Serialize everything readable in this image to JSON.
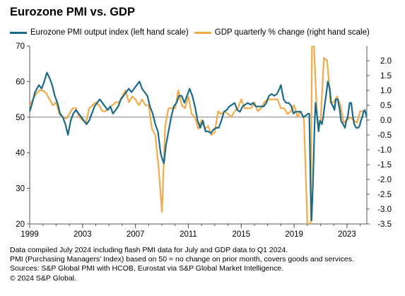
{
  "title": "Eurozone PMI vs. GDP",
  "colors": {
    "pmi": "#1a6b8a",
    "gdp": "#f2ab4c",
    "axis": "#555555",
    "zero": "#808080"
  },
  "chart_data": {
    "type": "line",
    "title": "Eurozone PMI vs. GDP",
    "x_range": [
      1999,
      2024.5
    ],
    "x_ticks": [
      1999,
      2003,
      2007,
      2011,
      2015,
      2019,
      2023
    ],
    "y_left": {
      "range": [
        20,
        70
      ],
      "ticks": [
        20,
        30,
        40,
        50,
        60,
        70
      ]
    },
    "y_right": {
      "range": [
        -3.5,
        2.5
      ],
      "ticks": [
        "-3.5",
        "-3.0",
        "-2.5",
        "-2.0",
        "-1.5",
        "-1.0",
        "-0.5",
        "0.0",
        "0.5",
        "1.0",
        "1.5",
        "2.0"
      ]
    },
    "series": [
      {
        "name": "Eurozone PMI output index (left hand scale)",
        "axis": "left",
        "points": [
          [
            1999.0,
            51.5
          ],
          [
            1999.2,
            54
          ],
          [
            1999.4,
            57
          ],
          [
            1999.7,
            59
          ],
          [
            1999.9,
            58
          ],
          [
            2000.1,
            60
          ],
          [
            2000.3,
            62.5
          ],
          [
            2000.5,
            61
          ],
          [
            2000.7,
            59
          ],
          [
            2000.9,
            56
          ],
          [
            2001.1,
            54
          ],
          [
            2001.3,
            51
          ],
          [
            2001.5,
            50
          ],
          [
            2001.7,
            48
          ],
          [
            2001.9,
            45
          ],
          [
            2002.1,
            49
          ],
          [
            2002.3,
            51
          ],
          [
            2002.5,
            52
          ],
          [
            2002.7,
            51
          ],
          [
            2002.9,
            50
          ],
          [
            2003.1,
            49
          ],
          [
            2003.3,
            48
          ],
          [
            2003.5,
            49
          ],
          [
            2003.7,
            51
          ],
          [
            2003.9,
            53
          ],
          [
            2004.1,
            54
          ],
          [
            2004.3,
            55
          ],
          [
            2004.5,
            54
          ],
          [
            2004.7,
            53
          ],
          [
            2004.9,
            52
          ],
          [
            2005.1,
            53
          ],
          [
            2005.3,
            51
          ],
          [
            2005.5,
            52
          ],
          [
            2005.7,
            53
          ],
          [
            2005.9,
            55
          ],
          [
            2006.1,
            56
          ],
          [
            2006.3,
            57
          ],
          [
            2006.5,
            58
          ],
          [
            2006.7,
            57
          ],
          [
            2006.9,
            58
          ],
          [
            2007.1,
            59
          ],
          [
            2007.3,
            60
          ],
          [
            2007.5,
            58
          ],
          [
            2007.7,
            57
          ],
          [
            2007.9,
            56
          ],
          [
            2008.1,
            53
          ],
          [
            2008.3,
            51
          ],
          [
            2008.5,
            48
          ],
          [
            2008.7,
            46
          ],
          [
            2008.9,
            40
          ],
          [
            2009.0,
            38.5
          ],
          [
            2009.15,
            37
          ],
          [
            2009.3,
            42
          ],
          [
            2009.5,
            46
          ],
          [
            2009.7,
            50
          ],
          [
            2009.9,
            53
          ],
          [
            2010.1,
            54
          ],
          [
            2010.3,
            56
          ],
          [
            2010.5,
            56
          ],
          [
            2010.7,
            54
          ],
          [
            2010.9,
            56
          ],
          [
            2011.1,
            58
          ],
          [
            2011.3,
            56
          ],
          [
            2011.5,
            53
          ],
          [
            2011.7,
            49
          ],
          [
            2011.9,
            47
          ],
          [
            2012.1,
            49
          ],
          [
            2012.3,
            46
          ],
          [
            2012.5,
            46
          ],
          [
            2012.7,
            45.5
          ],
          [
            2012.9,
            46.5
          ],
          [
            2013.1,
            47
          ],
          [
            2013.3,
            47
          ],
          [
            2013.5,
            49
          ],
          [
            2013.7,
            51.5
          ],
          [
            2013.9,
            52
          ],
          [
            2014.1,
            53
          ],
          [
            2014.3,
            53.5
          ],
          [
            2014.5,
            54
          ],
          [
            2014.7,
            52
          ],
          [
            2014.9,
            51.5
          ],
          [
            2015.1,
            53
          ],
          [
            2015.3,
            53.5
          ],
          [
            2015.5,
            54
          ],
          [
            2015.7,
            53.5
          ],
          [
            2015.9,
            54
          ],
          [
            2016.1,
            53
          ],
          [
            2016.3,
            53
          ],
          [
            2016.5,
            53
          ],
          [
            2016.7,
            53
          ],
          [
            2016.9,
            54
          ],
          [
            2017.1,
            56
          ],
          [
            2017.3,
            56.5
          ],
          [
            2017.5,
            56
          ],
          [
            2017.7,
            56.5
          ],
          [
            2017.9,
            58
          ],
          [
            2018.0,
            59
          ],
          [
            2018.2,
            55
          ],
          [
            2018.4,
            54
          ],
          [
            2018.6,
            54
          ],
          [
            2018.8,
            53
          ],
          [
            2018.95,
            51
          ],
          [
            2019.1,
            51.5
          ],
          [
            2019.3,
            51.5
          ],
          [
            2019.5,
            51.5
          ],
          [
            2019.7,
            50
          ],
          [
            2019.9,
            50.5
          ],
          [
            2020.05,
            51
          ],
          [
            2020.15,
            51
          ],
          [
            2020.25,
            29
          ],
          [
            2020.32,
            21
          ],
          [
            2020.42,
            31
          ],
          [
            2020.55,
            48
          ],
          [
            2020.62,
            54
          ],
          [
            2020.75,
            50
          ],
          [
            2020.85,
            46
          ],
          [
            2020.95,
            49
          ],
          [
            2021.1,
            48
          ],
          [
            2021.2,
            50
          ],
          [
            2021.3,
            53
          ],
          [
            2021.45,
            57
          ],
          [
            2021.55,
            60
          ],
          [
            2021.7,
            58
          ],
          [
            2021.8,
            54
          ],
          [
            2021.95,
            53
          ],
          [
            2022.05,
            52
          ],
          [
            2022.15,
            55
          ],
          [
            2022.3,
            55
          ],
          [
            2022.45,
            52
          ],
          [
            2022.55,
            49
          ],
          [
            2022.7,
            48
          ],
          [
            2022.85,
            47
          ],
          [
            2022.95,
            49
          ],
          [
            2023.05,
            50
          ],
          [
            2023.2,
            54
          ],
          [
            2023.32,
            54
          ],
          [
            2023.45,
            50
          ],
          [
            2023.55,
            48
          ],
          [
            2023.7,
            47
          ],
          [
            2023.85,
            47
          ],
          [
            2023.95,
            47.5
          ],
          [
            2024.05,
            49
          ],
          [
            2024.15,
            50
          ],
          [
            2024.25,
            51.5
          ],
          [
            2024.35,
            52
          ],
          [
            2024.42,
            51
          ],
          [
            2024.5,
            50
          ]
        ]
      },
      {
        "name": "GDP quarterly % change (right hand scale)",
        "axis": "right",
        "points": [
          [
            1999.0,
            0.5
          ],
          [
            1999.25,
            0.7
          ],
          [
            1999.5,
            0.9
          ],
          [
            1999.75,
            1.0
          ],
          [
            2000.0,
            1.0
          ],
          [
            2000.25,
            0.9
          ],
          [
            2000.5,
            0.7
          ],
          [
            2000.75,
            0.5
          ],
          [
            2001.0,
            0.6
          ],
          [
            2001.25,
            0.2
          ],
          [
            2001.5,
            0.1
          ],
          [
            2001.75,
            0.05
          ],
          [
            2002.0,
            0.2
          ],
          [
            2002.25,
            0.4
          ],
          [
            2002.5,
            0.4
          ],
          [
            2002.75,
            0.1
          ],
          [
            2003.0,
            0.0
          ],
          [
            2003.25,
            -0.1
          ],
          [
            2003.5,
            0.4
          ],
          [
            2003.75,
            0.5
          ],
          [
            2004.0,
            0.6
          ],
          [
            2004.25,
            0.5
          ],
          [
            2004.5,
            0.3
          ],
          [
            2004.75,
            0.3
          ],
          [
            2005.0,
            0.4
          ],
          [
            2005.25,
            0.5
          ],
          [
            2005.5,
            0.6
          ],
          [
            2005.75,
            0.6
          ],
          [
            2006.0,
            0.8
          ],
          [
            2006.25,
            1.0
          ],
          [
            2006.5,
            0.6
          ],
          [
            2006.75,
            0.8
          ],
          [
            2007.0,
            0.7
          ],
          [
            2007.25,
            0.5
          ],
          [
            2007.5,
            0.7
          ],
          [
            2007.75,
            0.5
          ],
          [
            2008.0,
            0.5
          ],
          [
            2008.25,
            -0.3
          ],
          [
            2008.5,
            -0.5
          ],
          [
            2008.75,
            -1.6
          ],
          [
            2009.0,
            -3.1
          ],
          [
            2009.25,
            -0.2
          ],
          [
            2009.5,
            0.4
          ],
          [
            2009.75,
            0.4
          ],
          [
            2010.0,
            0.4
          ],
          [
            2010.25,
            1.0
          ],
          [
            2010.5,
            0.5
          ],
          [
            2010.75,
            0.4
          ],
          [
            2011.0,
            0.8
          ],
          [
            2011.25,
            0.2
          ],
          [
            2011.5,
            0.1
          ],
          [
            2011.75,
            -0.3
          ],
          [
            2012.0,
            0.0
          ],
          [
            2012.25,
            -0.3
          ],
          [
            2012.5,
            -0.2
          ],
          [
            2012.75,
            -0.5
          ],
          [
            2013.0,
            -0.4
          ],
          [
            2013.25,
            0.3
          ],
          [
            2013.5,
            0.2
          ],
          [
            2013.75,
            0.3
          ],
          [
            2014.0,
            0.2
          ],
          [
            2014.25,
            0.1
          ],
          [
            2014.5,
            0.3
          ],
          [
            2014.75,
            0.4
          ],
          [
            2015.0,
            0.7
          ],
          [
            2015.25,
            0.4
          ],
          [
            2015.5,
            0.4
          ],
          [
            2015.75,
            0.4
          ],
          [
            2016.0,
            0.6
          ],
          [
            2016.25,
            0.3
          ],
          [
            2016.5,
            0.4
          ],
          [
            2016.75,
            0.6
          ],
          [
            2017.0,
            0.7
          ],
          [
            2017.25,
            0.7
          ],
          [
            2017.5,
            0.7
          ],
          [
            2017.75,
            0.7
          ],
          [
            2018.0,
            0.4
          ],
          [
            2018.25,
            0.4
          ],
          [
            2018.5,
            0.2
          ],
          [
            2018.75,
            0.3
          ],
          [
            2019.0,
            0.5
          ],
          [
            2019.25,
            0.1
          ],
          [
            2019.5,
            0.3
          ],
          [
            2019.75,
            0.0
          ],
          [
            2020.0,
            -3.5
          ],
          [
            2020.25,
            -3.5
          ],
          [
            2020.35,
            2.5
          ],
          [
            2020.5,
            2.5
          ],
          [
            2020.75,
            -0.1
          ],
          [
            2021.0,
            -0.1
          ],
          [
            2021.25,
            2.1
          ],
          [
            2021.5,
            2.0
          ],
          [
            2021.75,
            0.6
          ],
          [
            2022.0,
            0.6
          ],
          [
            2022.25,
            0.8
          ],
          [
            2022.5,
            0.5
          ],
          [
            2022.75,
            -0.1
          ],
          [
            2023.0,
            0.0
          ],
          [
            2023.25,
            0.1
          ],
          [
            2023.5,
            0.0
          ],
          [
            2023.75,
            -0.1
          ],
          [
            2024.0,
            0.3
          ],
          [
            2024.25,
            0.3
          ]
        ]
      }
    ]
  },
  "notes": [
    "Data compiled July 2024 including flash PMI data for July and GDP data to Q1 2024.",
    "PMI (Purchasing Managers' Index) based on 50 = no change on prior month, covers goods and services.",
    "Sources: S&P Global PMI with HCOB, Eurostat via S&P Global Market Intelligence.",
    "© 2024 S&P Global."
  ]
}
